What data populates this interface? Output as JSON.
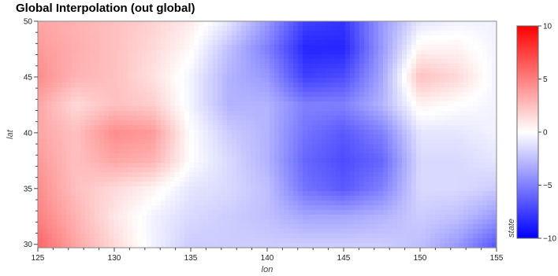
{
  "chart_data": {
    "type": "heatmap",
    "title": "Global Interpolation (out global)",
    "xlabel": "lon",
    "ylabel": "lat",
    "xlim": [
      125,
      155
    ],
    "ylim": [
      29.7,
      50
    ],
    "x_ticks": [
      125,
      130,
      135,
      140,
      145,
      150,
      155
    ],
    "y_ticks": [
      30,
      35,
      40,
      45,
      50
    ],
    "colorbar": {
      "label": "state",
      "range": [
        -10,
        10
      ],
      "ticks": [
        10,
        5,
        0,
        -5,
        -10
      ],
      "colormap": [
        "#0000ff",
        "#ffffff",
        "#ff0000"
      ]
    },
    "x": [
      125,
      127.5,
      130,
      132.5,
      135,
      137.5,
      140,
      142.5,
      145,
      147.5,
      150,
      152.5,
      155
    ],
    "y": [
      50,
      47.5,
      45,
      42.5,
      40,
      37.5,
      35,
      32.5,
      30
    ],
    "values": [
      [
        3.5,
        3.0,
        2.5,
        1.8,
        0.8,
        -1.0,
        -4.0,
        -7.5,
        -8.0,
        -4.0,
        -1.0,
        -0.5,
        -0.5
      ],
      [
        4.0,
        3.2,
        2.5,
        1.5,
        0.2,
        -2.5,
        -5.0,
        -8.5,
        -8.5,
        -4.0,
        0.5,
        0.5,
        -0.5
      ],
      [
        4.5,
        3.0,
        2.5,
        1.2,
        -0.5,
        -3.0,
        -4.0,
        -7.5,
        -7.0,
        -3.5,
        2.5,
        1.5,
        -0.5
      ],
      [
        3.5,
        1.5,
        2.5,
        2.0,
        -0.5,
        -3.0,
        -3.0,
        -5.0,
        -5.0,
        -3.0,
        0.5,
        0.0,
        -0.5
      ],
      [
        3.5,
        2.5,
        4.5,
        4.0,
        0.0,
        -2.0,
        -3.0,
        -5.5,
        -6.5,
        -5.0,
        -1.0,
        -1.0,
        -0.5
      ],
      [
        4.0,
        2.5,
        3.5,
        3.0,
        0.0,
        -1.5,
        -3.0,
        -6.0,
        -7.0,
        -6.0,
        -1.5,
        -1.5,
        -1.0
      ],
      [
        4.5,
        2.5,
        1.5,
        0.5,
        -1.0,
        -1.5,
        -2.5,
        -5.5,
        -6.5,
        -5.0,
        -1.5,
        -1.5,
        -2.0
      ],
      [
        5.0,
        3.0,
        1.0,
        -0.5,
        -1.5,
        -2.0,
        -2.5,
        -3.5,
        -3.5,
        -3.0,
        -2.0,
        -2.5,
        -4.0
      ],
      [
        6.0,
        3.5,
        1.5,
        -0.5,
        -2.0,
        -2.0,
        -2.0,
        -2.0,
        -2.0,
        -2.0,
        -2.5,
        -4.0,
        -6.5
      ]
    ]
  }
}
